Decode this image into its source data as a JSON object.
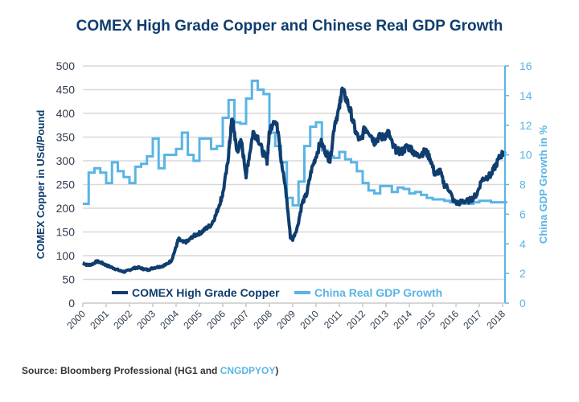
{
  "chart_data": {
    "type": "line",
    "title": "COMEX High Grade Copper and Chinese Real GDP Growth",
    "xlabel": "",
    "ylabel": "COMEX Copper in USd/Pound",
    "y2label": "China GDP Growth in %",
    "xlim": [
      2000,
      2018.2
    ],
    "ylim": [
      0,
      500
    ],
    "y2lim": [
      0,
      16
    ],
    "x_ticks": [
      "2000",
      "2001",
      "2002",
      "2003",
      "2004",
      "2005",
      "2006",
      "2007",
      "2008",
      "2009",
      "2010",
      "2011",
      "2012",
      "2013",
      "2014",
      "2015",
      "2016",
      "2017",
      "2018"
    ],
    "y_ticks": [
      "0",
      "50",
      "100",
      "150",
      "200",
      "250",
      "300",
      "350",
      "400",
      "450",
      "500"
    ],
    "y2_ticks": [
      "0",
      "2",
      "4",
      "6",
      "8",
      "10",
      "12",
      "14",
      "16"
    ],
    "grid": true,
    "legend_position": "bottom-left",
    "series": [
      {
        "name": "COMEX High Grade Copper",
        "axis": "left",
        "color": "#0f3d6e",
        "x": [
          2000.0,
          2000.2,
          2000.4,
          2000.6,
          2000.8,
          2001.0,
          2001.2,
          2001.4,
          2001.6,
          2001.8,
          2002.0,
          2002.2,
          2002.4,
          2002.6,
          2002.8,
          2003.0,
          2003.2,
          2003.4,
          2003.6,
          2003.8,
          2004.0,
          2004.1,
          2004.3,
          2004.5,
          2004.7,
          2004.9,
          2005.1,
          2005.3,
          2005.5,
          2005.7,
          2005.9,
          2006.0,
          2006.2,
          2006.3,
          2006.4,
          2006.5,
          2006.6,
          2006.8,
          2007.0,
          2007.1,
          2007.3,
          2007.5,
          2007.7,
          2007.9,
          2008.0,
          2008.2,
          2008.4,
          2008.5,
          2008.7,
          2008.9,
          2009.0,
          2009.2,
          2009.4,
          2009.6,
          2009.8,
          2010.0,
          2010.2,
          2010.4,
          2010.6,
          2010.8,
          2011.0,
          2011.1,
          2011.3,
          2011.5,
          2011.7,
          2011.9,
          2012.1,
          2012.3,
          2012.5,
          2012.7,
          2012.9,
          2013.1,
          2013.3,
          2013.5,
          2013.7,
          2013.9,
          2014.1,
          2014.3,
          2014.5,
          2014.7,
          2014.9,
          2015.1,
          2015.3,
          2015.5,
          2015.7,
          2015.9,
          2016.1,
          2016.3,
          2016.5,
          2016.7,
          2016.9,
          2017.1,
          2017.3,
          2017.5,
          2017.7,
          2017.9,
          2018.1
        ],
        "values": [
          85,
          80,
          82,
          88,
          85,
          80,
          76,
          72,
          68,
          66,
          70,
          74,
          75,
          72,
          70,
          74,
          76,
          78,
          82,
          90,
          118,
          135,
          128,
          130,
          140,
          145,
          150,
          158,
          165,
          185,
          215,
          230,
          290,
          340,
          390,
          360,
          320,
          340,
          270,
          300,
          360,
          350,
          320,
          300,
          360,
          390,
          360,
          300,
          240,
          140,
          135,
          160,
          210,
          230,
          280,
          310,
          340,
          320,
          300,
          380,
          410,
          450,
          430,
          400,
          360,
          340,
          370,
          360,
          340,
          350,
          350,
          360,
          330,
          320,
          320,
          330,
          325,
          310,
          315,
          320,
          305,
          270,
          280,
          250,
          240,
          215,
          210,
          215,
          215,
          220,
          230,
          260,
          265,
          270,
          290,
          310,
          320
        ]
      },
      {
        "name": "China Real GDP Growth",
        "axis": "right",
        "color": "#5ab4e5",
        "x": [
          2000.0,
          2000.25,
          2000.5,
          2000.75,
          2001.0,
          2001.25,
          2001.5,
          2001.75,
          2002.0,
          2002.25,
          2002.5,
          2002.75,
          2003.0,
          2003.25,
          2003.5,
          2003.75,
          2004.0,
          2004.25,
          2004.5,
          2004.75,
          2005.0,
          2005.25,
          2005.5,
          2005.75,
          2006.0,
          2006.25,
          2006.5,
          2006.75,
          2007.0,
          2007.25,
          2007.5,
          2007.75,
          2008.0,
          2008.25,
          2008.5,
          2008.75,
          2009.0,
          2009.25,
          2009.5,
          2009.75,
          2010.0,
          2010.25,
          2010.5,
          2010.75,
          2011.0,
          2011.25,
          2011.5,
          2011.75,
          2012.0,
          2012.25,
          2012.5,
          2012.75,
          2013.0,
          2013.25,
          2013.5,
          2013.75,
          2014.0,
          2014.25,
          2014.5,
          2014.75,
          2015.0,
          2015.25,
          2015.5,
          2015.75,
          2016.0,
          2016.25,
          2016.5,
          2016.75,
          2017.0,
          2017.25,
          2017.5,
          2017.75,
          2018.0
        ],
        "values": [
          6.7,
          8.8,
          9.1,
          8.8,
          8.1,
          9.5,
          8.9,
          8.5,
          8.1,
          9.2,
          9.4,
          9.9,
          11.1,
          9.1,
          10.0,
          10.0,
          10.4,
          11.5,
          10.0,
          9.6,
          11.1,
          11.1,
          10.4,
          10.6,
          12.5,
          13.7,
          12.2,
          12.1,
          13.8,
          15.0,
          14.4,
          14.1,
          11.5,
          10.6,
          9.5,
          7.1,
          6.6,
          8.2,
          10.6,
          11.9,
          12.2,
          10.3,
          9.9,
          9.8,
          10.2,
          9.7,
          9.5,
          8.9,
          8.1,
          7.6,
          7.4,
          7.9,
          7.9,
          7.5,
          7.8,
          7.7,
          7.4,
          7.5,
          7.3,
          7.1,
          7.0,
          7.0,
          6.9,
          6.8,
          6.7,
          6.7,
          6.7,
          6.8,
          6.9,
          6.9,
          6.8,
          6.8,
          6.8
        ]
      }
    ],
    "legend": [
      {
        "label": "COMEX High Grade Copper",
        "color": "#0f3d6e"
      },
      {
        "label": "China Real GDP Growth",
        "color": "#5ab4e5"
      }
    ]
  },
  "source": {
    "prefix": "Source: Bloomberg Professional (HG1 and ",
    "highlight": "CNGDPYOY",
    "suffix": ")"
  }
}
